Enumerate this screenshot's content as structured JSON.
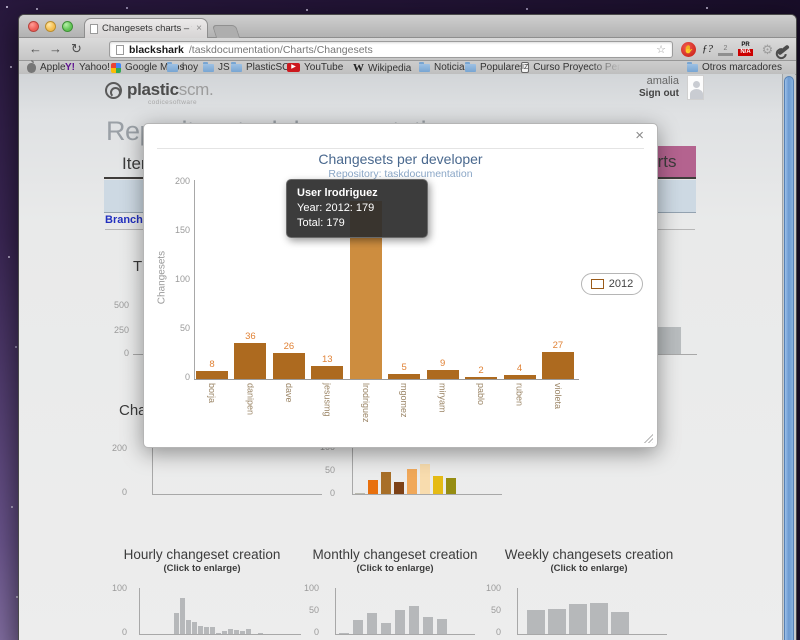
{
  "browser": {
    "tab_title": "Changesets charts – taskdo",
    "tab_close": "×",
    "nav": {
      "back": "←",
      "forward": "→",
      "reload": "↻"
    },
    "url_host": "blackshark",
    "url_path": "/taskdocumentation/Charts/Changesets",
    "star": "☆",
    "extensions": {
      "f_label": "ƒ?",
      "ruler_label": "2",
      "pr_top": "PR",
      "pr_bottom": "N/A"
    },
    "bookmarks": [
      {
        "label": "Apple"
      },
      {
        "label": "Yahoo!"
      },
      {
        "label": "Google Maps"
      },
      {
        "label": "hoy"
      },
      {
        "label": "JS"
      },
      {
        "label": "PlasticSCM"
      },
      {
        "label": "YouTube"
      },
      {
        "label": "Wikipedia"
      },
      {
        "label": "Noticias"
      },
      {
        "label": "Populares"
      },
      {
        "label": "Curso Proyecto Pers"
      },
      {
        "label": "Otros marcadores"
      }
    ],
    "yahoo_icon_text": "Y!",
    "youtube_icon_text": "▶",
    "wikipedia_icon_text": "W",
    "iz_icon_text": "IZ"
  },
  "site": {
    "brand_bold": "plastic",
    "brand_light": "scm.",
    "brand_sub": "codicesoftware",
    "user_name": "amalia",
    "sign_out": "Sign out",
    "page_title": "Repository taskdocumentation",
    "tab_items": "Items",
    "tab_charts": "Charts",
    "branch_link": "Branch e",
    "heading_total_partial": "T",
    "heading_changesets_partial": "Cha"
  },
  "modal": {
    "close": "×",
    "title": "Changesets per developer",
    "subtitle": "Repository: taskdocumentation",
    "ylabel": "Changesets",
    "legend_label": "2012",
    "tooltip": {
      "line1": "User lrodriguez",
      "line2": "Year: 2012: 179",
      "line3": "Total: 179"
    }
  },
  "chart_data": [
    {
      "name": "changesets-per-developer",
      "type": "bar",
      "title": "Changesets per developer",
      "subtitle": "Repository: taskdocumentation",
      "ylabel": "Changesets",
      "categories": [
        "borja",
        "danipen",
        "dave",
        "jesusmg",
        "lrodriguez",
        "mgomez",
        "miryam",
        "pablo",
        "ruben",
        "violeta"
      ],
      "values": [
        8,
        36,
        26,
        13,
        179,
        5,
        9,
        2,
        4,
        27
      ],
      "ylim": [
        0,
        200
      ],
      "yticks": [
        "200",
        "150",
        "100",
        "50",
        "0"
      ],
      "bar_color": "#ad6a1f",
      "highlight_index": 4,
      "highlight_color": "#cd8d3f",
      "show_values": true,
      "interactable": true,
      "legend": [
        "2012"
      ],
      "legend_color": "#c07021",
      "legend_position": "right"
    },
    {
      "name": "monthly-colored-preview",
      "type": "bar",
      "values": [
        2,
        30,
        47,
        25,
        53,
        63,
        38,
        33
      ],
      "ylim": [
        0,
        100
      ],
      "yticks": [
        "100",
        "50",
        "0"
      ],
      "colors": [
        "#b9b9ae",
        "#e8700e",
        "#a86f28",
        "#7d4116",
        "#f0a85a",
        "#f8dcae",
        "#e5bb16",
        "#968d12"
      ]
    },
    {
      "name": "hourly-changeset-creation",
      "type": "bar",
      "title": "Hourly changeset creation",
      "subtitle": "(Click to enlarge)",
      "values": [
        47,
        80,
        31,
        27,
        18,
        16,
        16,
        2,
        7,
        11,
        9,
        7,
        11,
        0,
        2
      ],
      "ylim": [
        0,
        100
      ],
      "yticks": [
        "100",
        "0"
      ],
      "bar_color": "#b6b8ba",
      "interactable": true
    },
    {
      "name": "monthly-changeset-creation",
      "type": "bar",
      "title": "Monthly changeset creation",
      "subtitle": "(Click to enlarge)",
      "values": [
        2,
        30,
        47,
        25,
        53,
        63,
        38,
        33
      ],
      "ylim": [
        0,
        100
      ],
      "yticks": [
        "100",
        "50",
        "0"
      ],
      "bar_color": "#b6b8ba",
      "interactable": true
    },
    {
      "name": "weekly-changesets-creation",
      "type": "bar",
      "title": "Weekly changesets creation",
      "subtitle": "(Click to enlarge)",
      "values": [
        53,
        55,
        66,
        68,
        48
      ],
      "ylim": [
        0,
        100
      ],
      "yticks": [
        "100",
        "50",
        "0"
      ],
      "bar_color": "#b6b8ba",
      "interactable": true
    },
    {
      "name": "total-chart-partial",
      "type": "bar",
      "values": [
        250
      ],
      "ylim": [
        0,
        500
      ],
      "yticks": [
        "500",
        "250",
        "0"
      ],
      "bar_color": "#b9bdbf"
    },
    {
      "name": "left-chart-partial",
      "type": "bar",
      "values": [],
      "ylim": [
        0,
        200
      ],
      "yticks": [
        "200",
        "0"
      ]
    }
  ]
}
